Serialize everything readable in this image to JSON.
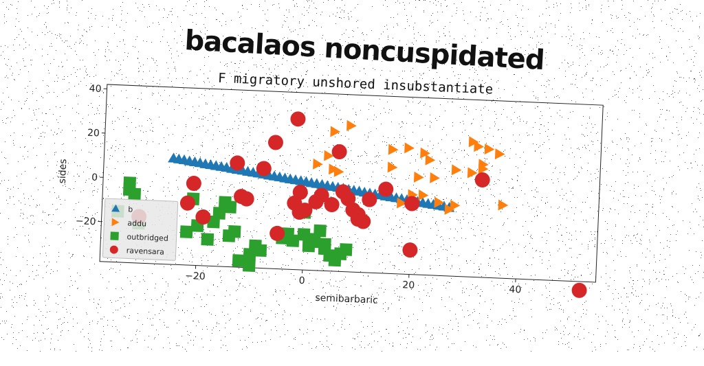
{
  "title": "bacalaos noncuspidated",
  "chart_data": {
    "type": "scatter",
    "subtitle": "F migratory unshored insubstantiate",
    "xlabel": "semibarbaric",
    "ylabel": "sides",
    "xlim": [
      -38,
      55
    ],
    "ylim": [
      -38,
      42
    ],
    "xticks": [
      -20,
      0,
      20,
      40
    ],
    "yticks": [
      -20,
      0,
      20,
      40
    ],
    "xtick_labels": [
      "−20",
      "0",
      "20",
      "40"
    ],
    "ytick_labels": [
      "−20",
      "0",
      "20",
      "40"
    ],
    "legend_position": "lower left",
    "grid": false,
    "series": [
      {
        "name": "b",
        "marker": "triangle-up",
        "color": "#1f77b4",
        "x": [
          -25,
          -24,
          -23,
          -22,
          -21,
          -20,
          -19,
          -18,
          -17,
          -16,
          -15,
          -14,
          -13,
          -12,
          -11,
          -10,
          -9,
          -8,
          -7,
          -6,
          -5,
          -4,
          -3,
          -2,
          -1,
          0,
          1,
          2,
          3,
          4,
          5,
          6,
          7,
          8,
          9,
          10,
          11,
          12,
          13,
          14,
          15,
          16,
          17,
          18,
          19,
          20,
          21,
          22,
          23,
          24,
          25,
          26,
          27
        ],
        "y": [
          10.0,
          9.7,
          9.4,
          9.0,
          8.7,
          8.4,
          8.0,
          7.7,
          7.4,
          7.1,
          6.8,
          6.4,
          6.1,
          5.8,
          5.4,
          5.1,
          4.8,
          4.5,
          4.1,
          3.8,
          3.5,
          3.1,
          2.8,
          2.5,
          2.2,
          1.9,
          1.5,
          1.2,
          0.9,
          0.5,
          0.2,
          -0.1,
          -0.4,
          -0.8,
          -1.1,
          -1.4,
          -1.8,
          -2.1,
          -2.4,
          -2.7,
          -3.1,
          -3.4,
          -3.7,
          -4.0,
          -4.4,
          -4.7,
          -5.0,
          -5.4,
          -5.7,
          -6.0,
          -6.3,
          -6.6,
          -7.0
        ]
      },
      {
        "name": "addu",
        "marker": "triangle-right",
        "color": "#ff7f0e",
        "x": [
          5,
          8,
          4,
          2,
          5,
          6,
          16,
          19,
          22,
          23,
          31,
          32,
          34,
          33,
          36,
          16,
          21,
          24,
          28,
          31,
          33,
          20,
          22,
          18,
          25,
          28,
          27,
          37
        ],
        "y": [
          25,
          28,
          14,
          10,
          8,
          7,
          18,
          19,
          17,
          14,
          23,
          21,
          20,
          13,
          18,
          10,
          6,
          6,
          10,
          9,
          11,
          -2,
          -2,
          -6,
          -5,
          -6,
          -8,
          -5
        ]
      },
      {
        "name": "outbridged",
        "marker": "square",
        "color": "#2ca02c",
        "x": [
          -33,
          -33,
          -32,
          -35,
          -31,
          -21,
          -22,
          -20,
          -18,
          -17,
          -16,
          -15,
          -14,
          -13,
          -14,
          -10,
          -9,
          -8,
          -4,
          -3,
          -2,
          0,
          1,
          0,
          1,
          2,
          3,
          4,
          4,
          5,
          6,
          7,
          8,
          -12,
          -10
        ],
        "y": [
          -2,
          -5,
          -7,
          -15,
          -20,
          -8,
          -23,
          -20,
          -26,
          -18,
          -14,
          -9,
          -11,
          -22,
          -24,
          -32,
          -28,
          -30,
          -24,
          -22,
          -25,
          -12,
          -24,
          -22,
          -27,
          -25,
          -20,
          -28,
          -26,
          -31,
          -33,
          -30,
          -28,
          -35,
          -37
        ]
      },
      {
        "name": "ravensara",
        "marker": "circle",
        "color": "#d62728",
        "x": [
          -31,
          -22,
          -21,
          -19,
          -13,
          -12,
          -11,
          -8,
          -6,
          -5,
          -2,
          -2,
          -1,
          -1,
          0,
          2,
          3,
          5,
          6,
          7,
          8,
          9,
          10,
          10,
          11,
          12,
          15,
          20,
          20,
          33,
          52
        ],
        "y": [
          -17,
          -10,
          -1,
          -16,
          9,
          -6,
          -7,
          7,
          19,
          -22,
          30,
          -8,
          -3,
          -12,
          -11,
          -7,
          -4,
          -8,
          16,
          -2,
          -5,
          -10,
          -14,
          -12,
          -15,
          -5,
          0,
          -6,
          -27,
          6,
          -42
        ]
      }
    ]
  }
}
